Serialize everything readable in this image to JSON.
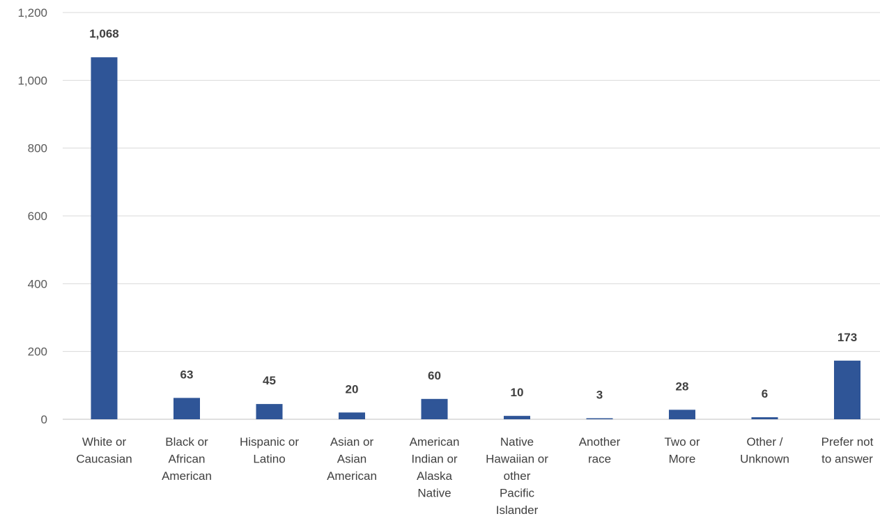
{
  "chart_data": {
    "type": "bar",
    "title": "",
    "xlabel": "",
    "ylabel": "",
    "categories": [
      [
        "White or",
        "Caucasian"
      ],
      [
        "Black or",
        "African",
        "American"
      ],
      [
        "Hispanic or",
        "Latino"
      ],
      [
        "Asian or",
        "Asian",
        "American"
      ],
      [
        "American",
        "Indian or",
        "Alaska",
        "Native"
      ],
      [
        "Native",
        "Hawaiian or",
        "other",
        "Pacific",
        "Islander"
      ],
      [
        "Another",
        "race"
      ],
      [
        "Two or",
        "More"
      ],
      [
        "Other /",
        "Unknown"
      ],
      [
        "Prefer not",
        "to answer"
      ]
    ],
    "values": [
      1068,
      63,
      45,
      20,
      60,
      10,
      3,
      28,
      6,
      173
    ],
    "data_labels": [
      "1,068",
      "63",
      "45",
      "20",
      "60",
      "10",
      "3",
      "28",
      "6",
      "173"
    ],
    "ylim": [
      0,
      1200
    ],
    "yticks": [
      0,
      200,
      400,
      600,
      800,
      1000,
      1200
    ],
    "ytick_labels": [
      "0",
      "200",
      "400",
      "600",
      "800",
      "1,000",
      "1,200"
    ],
    "bar_color": "#2f5597",
    "grid": true,
    "legend": "none"
  }
}
